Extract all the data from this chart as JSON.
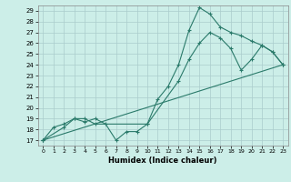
{
  "xlabel": "Humidex (Indice chaleur)",
  "background_color": "#cceee8",
  "grid_color": "#aacccc",
  "line_color": "#2a7a6a",
  "xlim": [
    -0.5,
    23.5
  ],
  "ylim": [
    16.5,
    29.5
  ],
  "xticks": [
    0,
    1,
    2,
    3,
    4,
    5,
    6,
    7,
    8,
    9,
    10,
    11,
    12,
    13,
    14,
    15,
    16,
    17,
    18,
    19,
    20,
    21,
    22,
    23
  ],
  "yticks": [
    17,
    18,
    19,
    20,
    21,
    22,
    23,
    24,
    25,
    26,
    27,
    28,
    29
  ],
  "line1_x": [
    0,
    1,
    2,
    3,
    4,
    5,
    6,
    7,
    8,
    9,
    10,
    11,
    12,
    13,
    14,
    15,
    16,
    17,
    18,
    19,
    20,
    21,
    22,
    23
  ],
  "line1_y": [
    17,
    18.2,
    18.5,
    19.0,
    18.7,
    19.0,
    18.5,
    17.0,
    17.8,
    17.8,
    18.5,
    20.8,
    22.0,
    24.0,
    27.2,
    29.3,
    28.7,
    27.5,
    27.0,
    26.7,
    26.2,
    25.8,
    25.2,
    24.0
  ],
  "line2_x": [
    0,
    2,
    3,
    4,
    5,
    10,
    13,
    14,
    15,
    16,
    17,
    18,
    19,
    20,
    21,
    22,
    23
  ],
  "line2_y": [
    17,
    18.2,
    19.0,
    19.0,
    18.5,
    18.5,
    22.5,
    24.5,
    26.0,
    27.0,
    26.5,
    25.5,
    23.5,
    24.5,
    25.8,
    25.2,
    24.0
  ],
  "line3_x": [
    0,
    23
  ],
  "line3_y": [
    17,
    24
  ]
}
